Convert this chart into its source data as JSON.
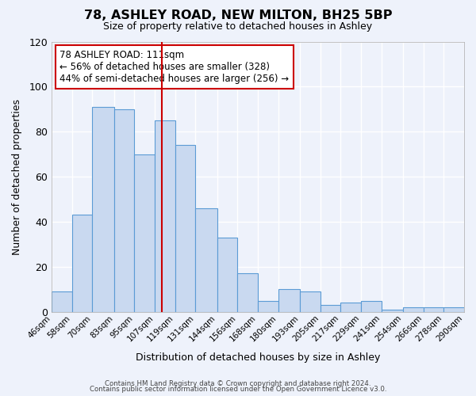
{
  "title": "78, ASHLEY ROAD, NEW MILTON, BH25 5BP",
  "subtitle": "Size of property relative to detached houses in Ashley",
  "xlabel": "Distribution of detached houses by size in Ashley",
  "ylabel": "Number of detached properties",
  "bin_labels": [
    "46sqm",
    "58sqm",
    "70sqm",
    "83sqm",
    "95sqm",
    "107sqm",
    "119sqm",
    "131sqm",
    "144sqm",
    "156sqm",
    "168sqm",
    "180sqm",
    "193sqm",
    "205sqm",
    "217sqm",
    "229sqm",
    "241sqm",
    "254sqm",
    "266sqm",
    "278sqm",
    "290sqm"
  ],
  "histogram_values": [
    9,
    43,
    91,
    90,
    70,
    85,
    74,
    46,
    33,
    17,
    5,
    10,
    9,
    3,
    4,
    5,
    1,
    2,
    2,
    2
  ],
  "bin_edges": [
    46,
    58,
    70,
    83,
    95,
    107,
    119,
    131,
    144,
    156,
    168,
    180,
    193,
    205,
    217,
    229,
    241,
    254,
    266,
    278,
    290
  ],
  "bar_color": "#c9d9f0",
  "bar_edge_color": "#5b9bd5",
  "vline_x": 111,
  "vline_color": "#cc0000",
  "annotation_line1": "78 ASHLEY ROAD: 111sqm",
  "annotation_line2": "← 56% of detached houses are smaller (328)",
  "annotation_line3": "44% of semi-detached houses are larger (256) →",
  "ylim": [
    0,
    120
  ],
  "yticks": [
    0,
    20,
    40,
    60,
    80,
    100,
    120
  ],
  "background_color": "#eef2fb",
  "grid_color": "#ffffff",
  "footer_line1": "Contains HM Land Registry data © Crown copyright and database right 2024.",
  "footer_line2": "Contains public sector information licensed under the Open Government Licence v3.0."
}
